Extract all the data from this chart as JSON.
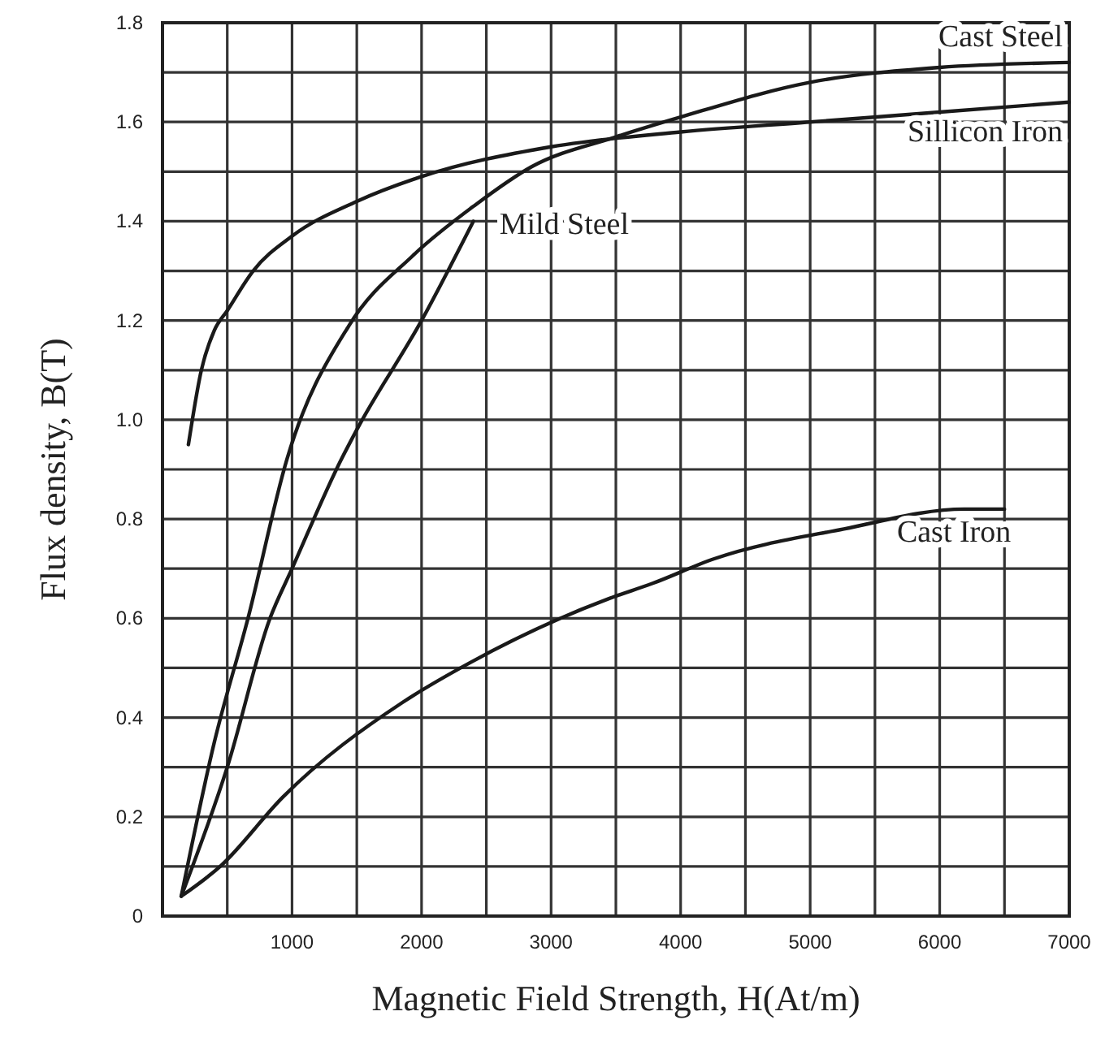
{
  "chart_data": {
    "type": "line",
    "xlabel": "Magnetic Field Strength, H(At/m)",
    "ylabel": "Flux density, B(T)",
    "xlim": [
      0,
      7000
    ],
    "ylim": [
      0,
      1.8
    ],
    "xticks": [
      {
        "value": 0,
        "label": null
      },
      {
        "value": 500,
        "label": null
      },
      1000,
      {
        "value": 1500,
        "label": null
      },
      2000,
      {
        "value": 2500,
        "label": null
      },
      3000,
      {
        "value": 3500,
        "label": null
      },
      4000,
      {
        "value": 4500,
        "label": null
      },
      5000,
      {
        "value": 5500,
        "label": null
      },
      6000,
      {
        "value": 6500,
        "label": null
      },
      7000
    ],
    "yticks": [
      0,
      {
        "value": 0.1,
        "label": null
      },
      0.2,
      {
        "value": 0.3,
        "label": null
      },
      0.4,
      {
        "value": 0.5,
        "label": null
      },
      0.6,
      {
        "value": 0.7,
        "label": null
      },
      0.8,
      {
        "value": 0.9,
        "label": null
      },
      {
        "value": 1,
        "label": "1.0"
      },
      {
        "value": 1.1,
        "label": null
      },
      1.2,
      {
        "value": 1.3,
        "label": null
      },
      1.4,
      {
        "value": 1.5,
        "label": null
      },
      1.6,
      {
        "value": 1.7,
        "label": null
      },
      1.8
    ],
    "grid": true,
    "marker": "none",
    "line_style": "solid",
    "series": [
      {
        "name": "Cast Steel",
        "color": "#1a1a1a",
        "x": [
          145,
          400,
          660,
          960,
          1440,
          1930,
          2400,
          2850,
          3500,
          4000,
          5000,
          6000,
          7000
        ],
        "values": [
          0.04,
          0.35,
          0.6,
          0.92,
          1.19,
          1.33,
          1.43,
          1.51,
          1.57,
          1.61,
          1.68,
          1.71,
          1.72
        ]
      },
      {
        "name": "Sillicon Iron",
        "color": "#1a1a1a",
        "x": [
          200,
          300,
          400,
          500,
          700,
          1000,
          1500,
          2000,
          3000,
          4000,
          5000,
          6000,
          7000
        ],
        "values": [
          0.95,
          1.1,
          1.18,
          1.22,
          1.3,
          1.37,
          1.44,
          1.49,
          1.55,
          1.58,
          1.6,
          1.62,
          1.64
        ]
      },
      {
        "name": "Mild Steel",
        "color": "#1a1a1a",
        "x": [
          145,
          500,
          830,
          1000,
          1380,
          1500,
          2000,
          2400
        ],
        "values": [
          0.04,
          0.3,
          0.6,
          0.7,
          0.92,
          0.98,
          1.2,
          1.4
        ]
      },
      {
        "name": "Cast Iron",
        "color": "#1a1a1a",
        "x": [
          145,
          445,
          930,
          1850,
          2370,
          3450,
          3780,
          4260,
          5260,
          6190,
          6500
        ],
        "values": [
          0.04,
          0.1,
          0.24,
          0.43,
          0.51,
          0.64,
          0.67,
          0.72,
          0.78,
          0.82,
          0.82
        ]
      }
    ]
  }
}
